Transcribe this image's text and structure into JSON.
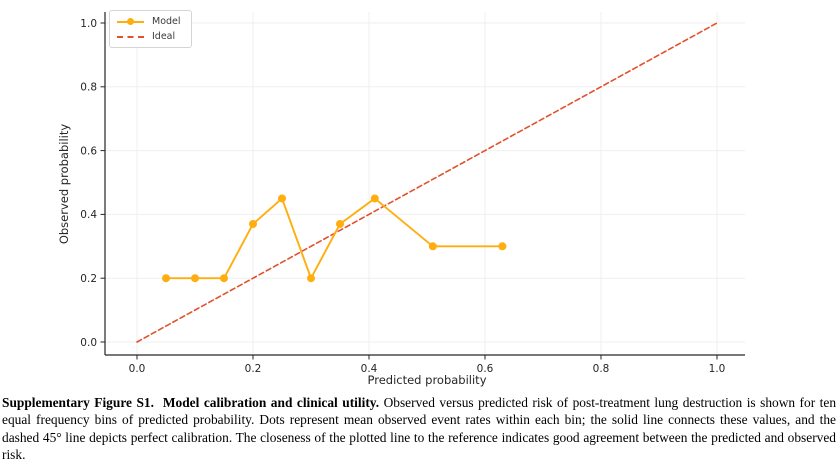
{
  "chart_data": {
    "type": "line",
    "title": "",
    "xlabel": "Predicted probability",
    "ylabel": "Observed probability",
    "xlim": [
      0.0,
      1.0
    ],
    "ylim": [
      0.0,
      1.0
    ],
    "xticks": [
      0.0,
      0.2,
      0.4,
      0.6,
      0.8,
      1.0
    ],
    "yticks": [
      0.0,
      0.2,
      0.4,
      0.6,
      0.8,
      1.0
    ],
    "xtick_labels": [
      "0.0",
      "0.2",
      "0.4",
      "0.6",
      "0.8",
      "1.0"
    ],
    "ytick_labels": [
      "0.0",
      "0.2",
      "0.4",
      "0.6",
      "0.8",
      "1.0"
    ],
    "grid": true,
    "grid_color": "#efefef",
    "spine_color": "#262626",
    "legend_position": "upper left",
    "series": [
      {
        "name": "Model",
        "style": "solid",
        "marker": "circle",
        "color": "#FFAD0F",
        "x": [
          0.05,
          0.1,
          0.15,
          0.2,
          0.25,
          0.3,
          0.35,
          0.41,
          0.51,
          0.63
        ],
        "y": [
          0.2,
          0.2,
          0.2,
          0.37,
          0.45,
          0.2,
          0.37,
          0.45,
          0.3,
          0.3
        ]
      },
      {
        "name": "Ideal",
        "style": "dashed",
        "marker": "none",
        "color": "#E2512B",
        "x": [
          0.0,
          1.0
        ],
        "y": [
          0.0,
          1.0
        ]
      }
    ]
  },
  "caption": {
    "lead": "Supplementary Figure S1.  Model calibration and clinical utility.",
    "body": " Observed versus predicted risk of post-treatment lung destruction is shown for ten equal frequency bins of predicted probability. Dots represent mean observed event rates within each bin; the solid line connects these values, and the dashed 45° line depicts perfect calibration. The closeness of the plotted line to the reference indicates good agreement between the predicted and observed risk."
  }
}
